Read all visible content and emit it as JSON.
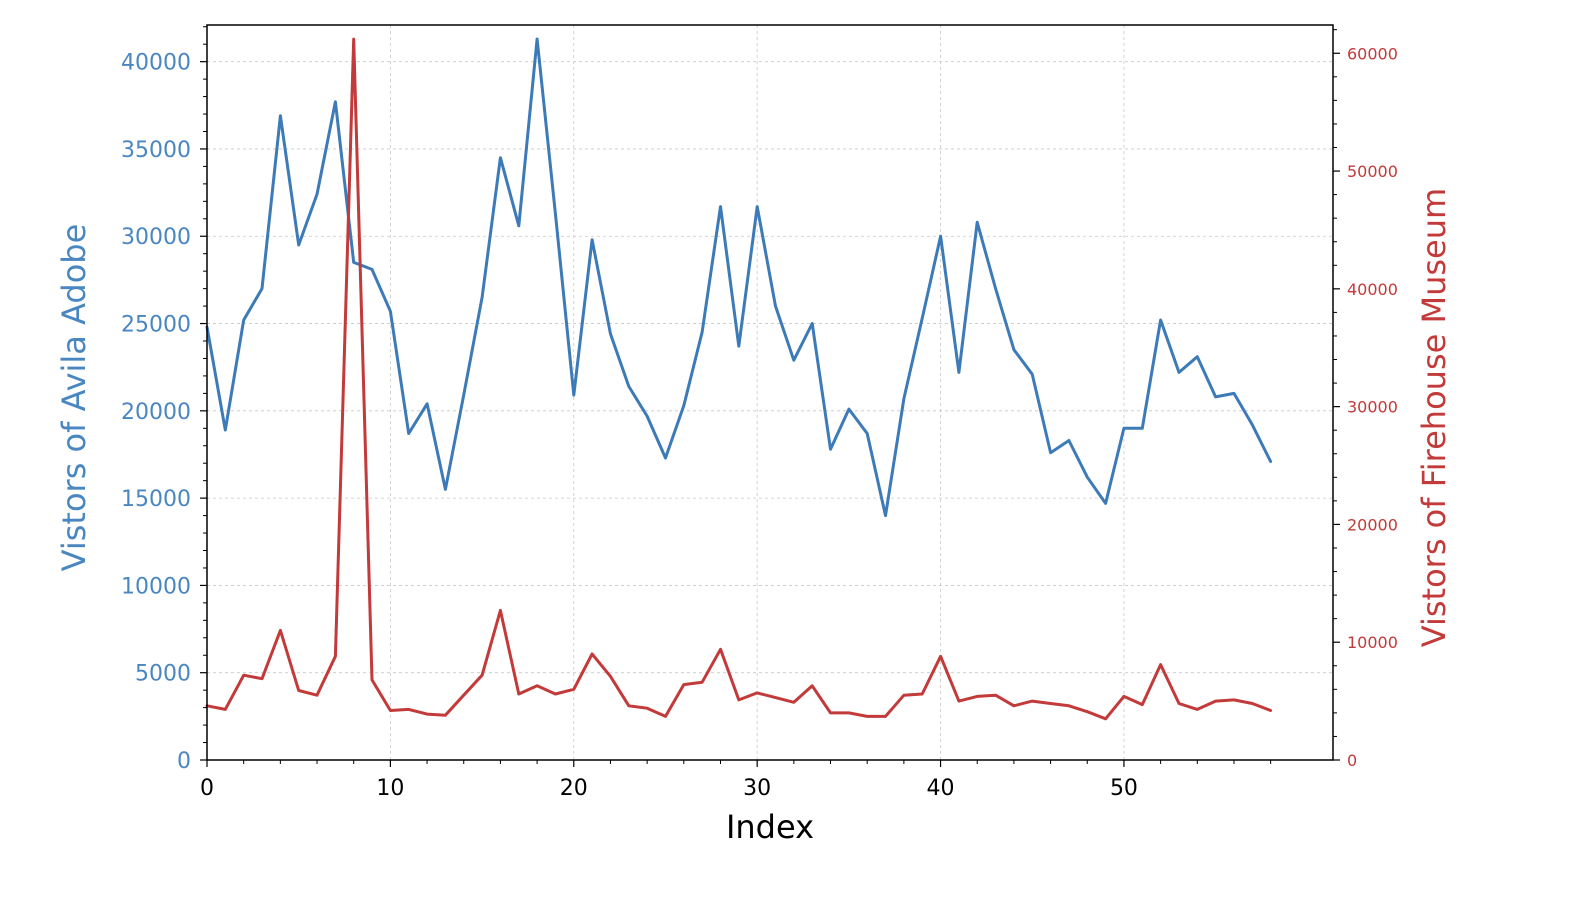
{
  "chart_data": {
    "type": "line",
    "title": "",
    "xlabel": "Index",
    "x": [
      0,
      1,
      2,
      3,
      4,
      5,
      6,
      7,
      8,
      9,
      10,
      11,
      12,
      13,
      14,
      15,
      16,
      17,
      18,
      19,
      20,
      21,
      22,
      23,
      24,
      25,
      26,
      27,
      28,
      29,
      30,
      31,
      32,
      33,
      34,
      35,
      36,
      37,
      38,
      39,
      40,
      41,
      42,
      43,
      44,
      45,
      46,
      47,
      48,
      49,
      50,
      51,
      52,
      53,
      54,
      55,
      56,
      57,
      58
    ],
    "xlim": [
      0,
      61.4
    ],
    "xticks": [
      0,
      10,
      20,
      30,
      40,
      50
    ],
    "grid": true,
    "series": [
      {
        "name": "Vistors of Avila Adobe",
        "axis": "left",
        "color": "#3d7ab8",
        "values": [
          24800,
          18900,
          25200,
          27000,
          36900,
          29500,
          32400,
          37700,
          28500,
          28100,
          25700,
          18700,
          20400,
          15500,
          20900,
          26500,
          34500,
          30600,
          41300,
          31300,
          20900,
          29800,
          24400,
          21400,
          19700,
          17300,
          20300,
          24500,
          31700,
          23700,
          31700,
          26000,
          22900,
          25000,
          17800,
          20100,
          18700,
          14000,
          20700,
          25300,
          30000,
          22200,
          30800,
          27000,
          23500,
          22100,
          17600,
          18300,
          16200,
          14700,
          19000,
          19000,
          25200,
          22200,
          23100,
          20800,
          21000,
          19200,
          17100
        ]
      },
      {
        "name": "Vistors of Firehouse Museum",
        "axis": "right",
        "color": "#c23a3a",
        "values": [
          4600,
          4300,
          7200,
          6900,
          11000,
          5900,
          5500,
          8800,
          61200,
          6800,
          4200,
          4300,
          3900,
          3800,
          5500,
          7200,
          12700,
          5600,
          6300,
          5600,
          6000,
          9000,
          7100,
          4600,
          4400,
          3700,
          6400,
          6600,
          9400,
          5100,
          5700,
          5300,
          4900,
          6300,
          4000,
          4000,
          3700,
          3700,
          5500,
          5600,
          8800,
          5000,
          5400,
          5500,
          4600,
          5000,
          4800,
          4600,
          4100,
          3500,
          5400,
          4700,
          8100,
          4800,
          4300,
          5000,
          5100,
          4800,
          4200
        ]
      }
    ],
    "left_axis": {
      "label": "Vistors of Avila Adobe",
      "ylim": [
        0,
        42100
      ],
      "ticks": [
        "0",
        "5000",
        "10000",
        "15000",
        "20000",
        "25000",
        "30000",
        "35000",
        "40000"
      ],
      "color": "#4a86c0"
    },
    "right_axis": {
      "label": "Vistors of Firehouse Museum",
      "ylim": [
        0,
        62400
      ],
      "ticks": [
        "0",
        "10000",
        "20000",
        "30000",
        "40000",
        "50000",
        "60000"
      ],
      "color": "#c23a3a"
    }
  }
}
